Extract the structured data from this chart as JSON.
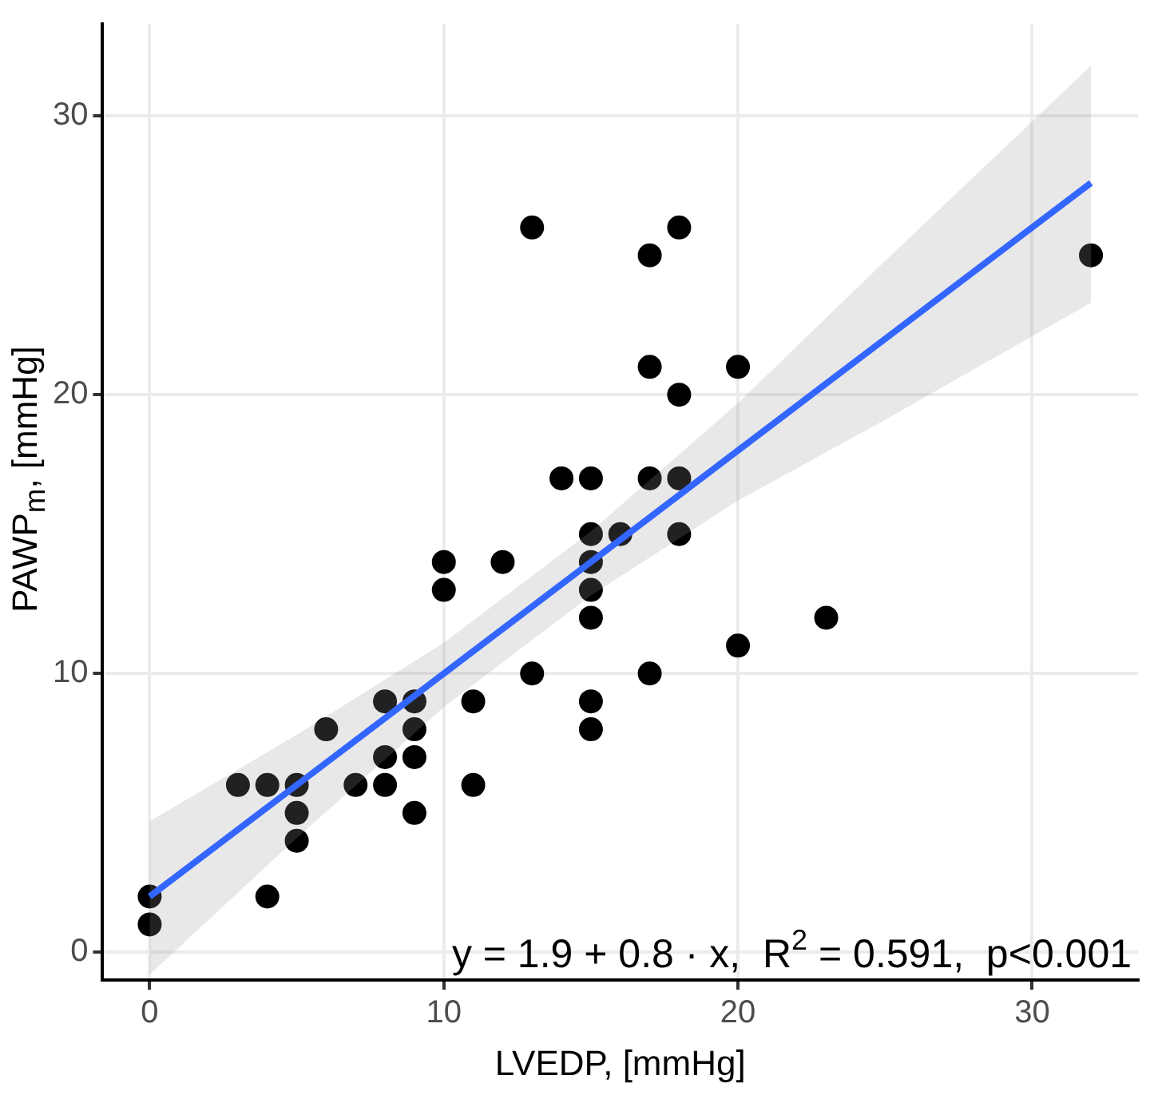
{
  "chart_data": {
    "type": "scatter",
    "xlabel": "LVEDP, [mmHg]",
    "ylabel": "PAWP$_{m}$, [mmHg]",
    "xlim": [
      -1.6,
      33.6
    ],
    "ylim": [
      -1,
      33.3
    ],
    "xticks": [
      0,
      10,
      20,
      30
    ],
    "yticks": [
      0,
      10,
      20,
      30
    ],
    "grid": true,
    "legend": false,
    "annotations": [
      "y = 1.9 + 0.8 · x,  R$^{2}$ = 0.591,  p<0.001"
    ],
    "series": [
      {
        "color": "#000000",
        "marker": "circle",
        "x": [
          0,
          0,
          3,
          4,
          4,
          5,
          5,
          5,
          6,
          7,
          8,
          8,
          8,
          9,
          9,
          9,
          9,
          10,
          10,
          11,
          11,
          12,
          13,
          13,
          14,
          15,
          15,
          15,
          15,
          15,
          15,
          15,
          16,
          17,
          17,
          17,
          17,
          18,
          18,
          18,
          18,
          20,
          20,
          23,
          32
        ],
        "values": [
          2,
          1,
          6,
          6,
          2,
          6,
          5,
          4,
          8,
          6,
          9,
          7,
          6,
          9,
          8,
          7,
          5,
          14,
          13,
          9,
          6,
          14,
          26,
          10,
          17,
          17,
          15,
          14,
          13,
          12,
          9,
          8,
          15,
          25,
          21,
          17,
          10,
          26,
          20,
          17,
          15,
          21,
          11,
          12,
          25
        ]
      },
      {
        "type": "line",
        "color": "#3366ff",
        "marker": "none",
        "x": [
          0,
          5,
          10,
          15,
          20,
          25,
          32
        ],
        "values": [
          2.0,
          6.0,
          10.0,
          14.0,
          18.0,
          22.0,
          27.6
        ],
        "lower": [
          -0.8,
          4.1,
          8.8,
          12.8,
          16.2,
          19.1,
          23.3
        ],
        "upper": [
          4.7,
          7.8,
          11.1,
          15.1,
          19.7,
          24.8,
          31.8
        ]
      }
    ]
  }
}
